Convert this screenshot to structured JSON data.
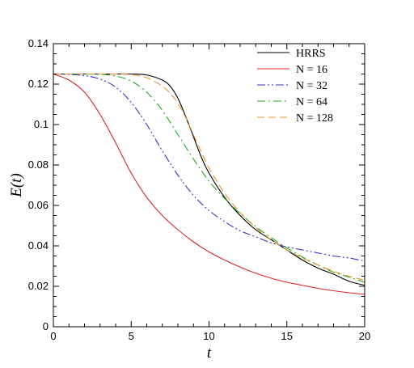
{
  "chart_data": {
    "type": "line",
    "title": "",
    "xlabel": "t",
    "ylabel": "E(t)",
    "xlim": [
      0,
      20
    ],
    "ylim": [
      0,
      0.14
    ],
    "xticks": [
      0,
      5,
      10,
      15,
      20
    ],
    "xtick_labels": [
      "0",
      "5",
      "10",
      "15",
      "20"
    ],
    "yticks": [
      0,
      0.02,
      0.04,
      0.06,
      0.08,
      0.1,
      0.12,
      0.14
    ],
    "ytick_labels": [
      "0",
      "0.02",
      "0.04",
      "0.06",
      "0.08",
      "0.1",
      "0.12",
      "0.14"
    ],
    "grid": false,
    "legend_position": "top-right",
    "series": [
      {
        "name": "HRRS",
        "color": "#000000",
        "dash": "solid",
        "x": [
          0,
          1,
          2,
          3,
          4,
          5,
          6,
          7,
          7.5,
          8,
          8.5,
          9,
          9.5,
          10,
          11,
          12,
          13,
          14,
          15,
          16,
          17,
          18,
          19,
          20
        ],
        "y": [
          0.125,
          0.125,
          0.125,
          0.125,
          0.125,
          0.125,
          0.1245,
          0.122,
          0.119,
          0.113,
          0.104,
          0.094,
          0.084,
          0.076,
          0.064,
          0.055,
          0.048,
          0.043,
          0.038,
          0.033,
          0.029,
          0.026,
          0.0225,
          0.0205
        ]
      },
      {
        "name": "N = 16",
        "color": "#d62728",
        "dash": "solid",
        "x": [
          0,
          1,
          2,
          3,
          4,
          5,
          6,
          7,
          8,
          9,
          10,
          11,
          12,
          13,
          14,
          15,
          16,
          17,
          18,
          19,
          20
        ],
        "y": [
          0.125,
          0.122,
          0.116,
          0.105,
          0.091,
          0.076,
          0.064,
          0.055,
          0.048,
          0.042,
          0.037,
          0.033,
          0.0295,
          0.0265,
          0.024,
          0.022,
          0.0205,
          0.019,
          0.0178,
          0.0168,
          0.016
        ]
      },
      {
        "name": "N = 32",
        "color": "#3333cc",
        "dash": "dashdotdot",
        "x": [
          0,
          1,
          2,
          3,
          4,
          5,
          6,
          7,
          8,
          9,
          10,
          11,
          12,
          13,
          14,
          15,
          16,
          17,
          18,
          19,
          20
        ],
        "y": [
          0.125,
          0.1248,
          0.1242,
          0.1225,
          0.1185,
          0.111,
          0.1,
          0.087,
          0.075,
          0.065,
          0.0575,
          0.052,
          0.0475,
          0.0445,
          0.0415,
          0.0395,
          0.038,
          0.0365,
          0.035,
          0.034,
          0.0325
        ]
      },
      {
        "name": "N = 64",
        "color": "#22aa22",
        "dash": "dashdot",
        "x": [
          0,
          1,
          2,
          3,
          4,
          5,
          6,
          7,
          8,
          9,
          10,
          11,
          12,
          13,
          14,
          15,
          16,
          17,
          18,
          19,
          20
        ],
        "y": [
          0.125,
          0.125,
          0.125,
          0.1248,
          0.124,
          0.1215,
          0.116,
          0.107,
          0.095,
          0.083,
          0.072,
          0.0635,
          0.056,
          0.0495,
          0.044,
          0.039,
          0.0345,
          0.0305,
          0.027,
          0.0245,
          0.022
        ]
      },
      {
        "name": "N = 128",
        "color": "#f0922a",
        "dash": "dashed",
        "x": [
          0,
          1,
          2,
          3,
          4,
          5,
          6,
          7,
          7.5,
          8,
          8.5,
          9,
          9.5,
          10,
          11,
          12,
          13,
          14,
          15,
          16,
          17,
          18,
          19,
          20
        ],
        "y": [
          0.125,
          0.125,
          0.125,
          0.125,
          0.125,
          0.1247,
          0.1232,
          0.119,
          0.1155,
          0.1105,
          0.1035,
          0.095,
          0.0865,
          0.0785,
          0.066,
          0.0565,
          0.049,
          0.043,
          0.038,
          0.034,
          0.0305,
          0.0275,
          0.025,
          0.023
        ]
      }
    ]
  }
}
